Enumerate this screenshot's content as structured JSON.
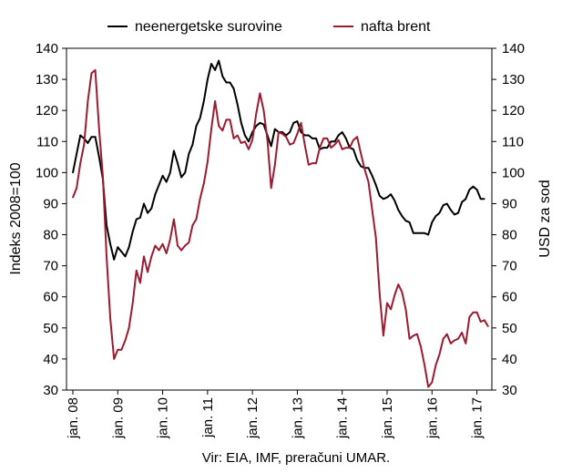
{
  "chart_data": {
    "type": "line",
    "source_note": "Vir: EIA, IMF, preračuni UMAR.",
    "left_axis": {
      "label": "Indeks 2008=100",
      "ylim": [
        30,
        140
      ],
      "ticks": [
        30,
        40,
        50,
        60,
        70,
        80,
        90,
        100,
        110,
        120,
        130,
        140
      ]
    },
    "right_axis": {
      "label": "USD za sod",
      "ylim": [
        30,
        140
      ],
      "ticks": [
        30,
        40,
        50,
        60,
        70,
        80,
        90,
        100,
        110,
        120,
        130,
        140
      ]
    },
    "x_tick_labels": [
      "jan. 08",
      "jan. 09",
      "jan. 10",
      "jan. 11",
      "jan. 12",
      "jan. 13",
      "jan. 14",
      "jan. 15",
      "jan. 16",
      "jan. 17"
    ],
    "x_tick_months": [
      0,
      12,
      24,
      36,
      48,
      60,
      72,
      84,
      96,
      108
    ],
    "xlim_months": [
      0,
      112
    ],
    "grid": false,
    "legend_position": "top",
    "series": [
      {
        "name": "neenergetske surovine",
        "axis": "left",
        "color": "#000000",
        "values": [
          100,
          106,
          112,
          111,
          109.5,
          111.5,
          111.5,
          105,
          98,
          83,
          77,
          72,
          76,
          74.5,
          73,
          76,
          81,
          85,
          85.5,
          90,
          87,
          88.5,
          93,
          96,
          99,
          97,
          100,
          107,
          103,
          98.5,
          100,
          106,
          109,
          115,
          117.5,
          123,
          130,
          135,
          133,
          136,
          131,
          129,
          129,
          127,
          122,
          116,
          112,
          110,
          113,
          115,
          116,
          115.5,
          112,
          108.5,
          114,
          113,
          113,
          112,
          113,
          116,
          116.5,
          113,
          112,
          112,
          111,
          111,
          107.5,
          108,
          108,
          110,
          110,
          112,
          113,
          111,
          108,
          107.5,
          104,
          102,
          101.5,
          101.5,
          99,
          96,
          92.5,
          91.5,
          92,
          93,
          91,
          88,
          86,
          84.5,
          84,
          80.5,
          80.5,
          80.5,
          80.5,
          80,
          84,
          86,
          87,
          89.5,
          90,
          88,
          86.5,
          87,
          90.5,
          91.5,
          94.5,
          95.5,
          94.5,
          91.5,
          91.5
        ]
      },
      {
        "name": "nafta brent",
        "axis": "right",
        "color": "#9b1b30",
        "values": [
          92,
          95,
          103,
          109,
          123,
          132,
          133,
          114,
          99,
          73,
          53,
          40,
          43,
          43,
          46,
          50,
          58,
          68.5,
          64.5,
          73,
          68,
          73,
          76.5,
          75,
          77,
          74,
          78.5,
          85,
          76.5,
          75,
          76.5,
          77.5,
          83,
          85,
          91.5,
          96.5,
          103.5,
          114,
          123,
          115,
          113.5,
          117,
          117,
          111,
          112,
          109.5,
          110,
          107.5,
          110.5,
          119,
          125.5,
          120,
          110.5,
          95,
          102.5,
          113,
          112.5,
          111.5,
          109,
          109.5,
          112.5,
          116,
          109,
          102.5,
          103,
          103,
          108,
          111,
          111,
          108,
          109,
          110.5,
          107.5,
          108,
          108,
          110.5,
          111.5,
          106,
          101,
          97,
          88,
          79,
          61,
          47.5,
          58,
          56,
          60.5,
          64,
          61.5,
          56,
          46.5,
          47.5,
          48,
          44,
          38,
          31,
          32.5,
          38,
          41.5,
          46.5,
          48,
          45,
          46,
          46.5,
          48.5,
          45,
          53.5,
          55,
          55,
          52,
          52.5,
          50.5
        ]
      }
    ]
  }
}
